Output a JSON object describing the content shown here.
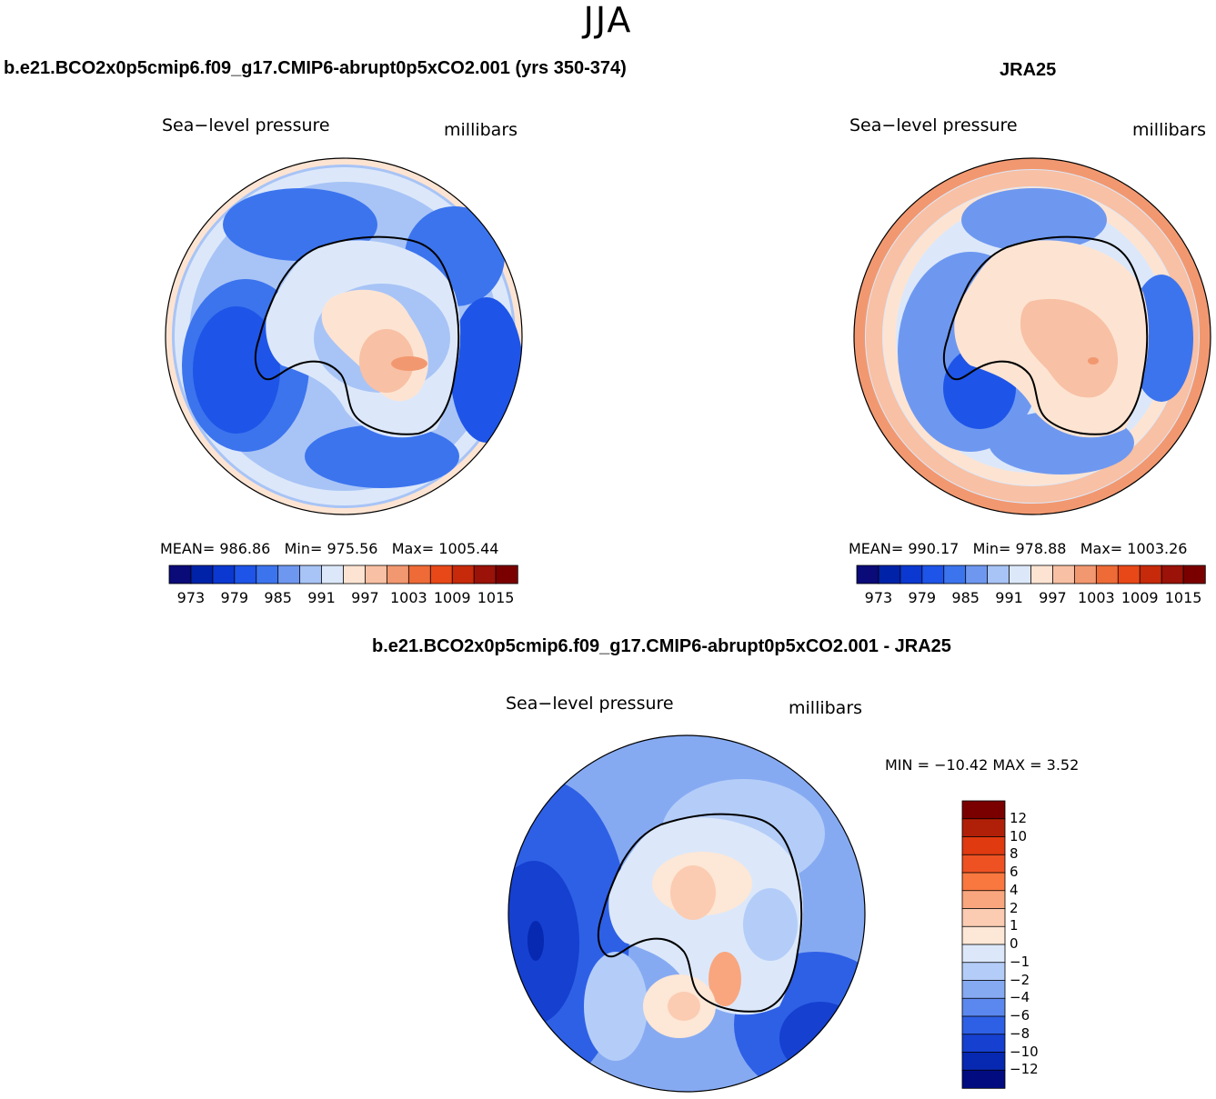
{
  "figure": {
    "season": "JJA",
    "model_title": "b.e21.BCO2x0p5cmip6.f09_g17.CMIP6-abrupt0p5xCO2.001 (yrs 350-374)",
    "obs_title": "JRA25",
    "diff_title": "b.e21.BCO2x0p5cmip6.f09_g17.CMIP6-abrupt0p5xCO2.001 - JRA25"
  },
  "panels": {
    "model": {
      "variable": "Sea−level pressure",
      "units": "millibars",
      "mean_label": "MEAN=",
      "mean": "986.86",
      "min_label": "Min=",
      "min": "975.56",
      "max_label": "Max=",
      "max": "1005.44"
    },
    "obs": {
      "variable": "Sea−level pressure",
      "units": "millibars",
      "mean_label": "MEAN=",
      "mean": "990.17",
      "min_label": "Min=",
      "min": "978.88",
      "max_label": "Max=",
      "max": "1003.26"
    },
    "diff": {
      "variable": "Sea−level pressure",
      "units": "millibars",
      "minmax_text": "MIN = −10.42 MAX =    3.52"
    }
  },
  "colorbars": {
    "abs": {
      "ticks": [
        "973",
        "979",
        "985",
        "991",
        "997",
        "1003",
        "1009",
        "1015"
      ],
      "colors": [
        "#0a0a78",
        "#0022a8",
        "#0a38d0",
        "#1e55e8",
        "#3c74ee",
        "#6e98f0",
        "#a8c4f6",
        "#dce8fa",
        "#fde4d2",
        "#f8c0a4",
        "#f29870",
        "#ee6a36",
        "#e84818",
        "#c62a0a",
        "#9a1208",
        "#7a0000"
      ]
    },
    "diff": {
      "ticks": [
        "12",
        "10",
        "8",
        "6",
        "4",
        "2",
        "1",
        "0",
        "−1",
        "−2",
        "−4",
        "−6",
        "−8",
        "−10",
        "−12"
      ],
      "colors": [
        "#7a0000",
        "#b02008",
        "#e03a10",
        "#ee5222",
        "#f97840",
        "#f9a67e",
        "#fbccb2",
        "#fde7d6",
        "#dce8fa",
        "#b4cdf8",
        "#86aaf2",
        "#5b88ee",
        "#2e60e6",
        "#1640d0",
        "#0728b0",
        "#020c80"
      ]
    }
  },
  "chart_data": [
    {
      "type": "heatmap",
      "title": "b.e21.BCO2x0p5cmip6.f09_g17.CMIP6-abrupt0p5xCO2.001 (yrs 350-374)",
      "variable": "Sea-level pressure",
      "units": "millibars",
      "projection": "south polar stereographic",
      "mean": 986.86,
      "min": 975.56,
      "max": 1005.44,
      "contour_levels": [
        973,
        976,
        979,
        982,
        985,
        988,
        991,
        994,
        997,
        1000,
        1003,
        1006,
        1009,
        1012,
        1015
      ]
    },
    {
      "type": "heatmap",
      "title": "JRA25",
      "variable": "Sea-level pressure",
      "units": "millibars",
      "projection": "south polar stereographic",
      "mean": 990.17,
      "min": 978.88,
      "max": 1003.26,
      "contour_levels": [
        973,
        976,
        979,
        982,
        985,
        988,
        991,
        994,
        997,
        1000,
        1003,
        1006,
        1009,
        1012,
        1015
      ]
    },
    {
      "type": "heatmap",
      "title": "b.e21.BCO2x0p5cmip6.f09_g17.CMIP6-abrupt0p5xCO2.001 - JRA25",
      "variable": "Sea-level pressure",
      "units": "millibars",
      "projection": "south polar stereographic",
      "min": -10.42,
      "max": 3.52,
      "contour_levels": [
        -12,
        -10,
        -8,
        -6,
        -4,
        -2,
        -1,
        0,
        1,
        2,
        4,
        6,
        8,
        10,
        12
      ]
    }
  ]
}
